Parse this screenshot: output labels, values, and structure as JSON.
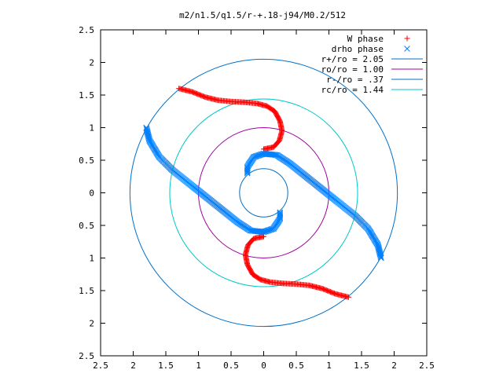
{
  "chart_data": {
    "type": "scatter",
    "title": "m2/n1.5/q1.5/r-+.18-j94/M0.2/512",
    "xlabel": "",
    "ylabel": "",
    "xlim": [
      -2.5,
      2.5
    ],
    "ylim": [
      -2.5,
      2.5
    ],
    "x_ticks": [
      {
        "value": -2.5,
        "label": "2.5"
      },
      {
        "value": -2,
        "label": "2"
      },
      {
        "value": -1.5,
        "label": "1.5"
      },
      {
        "value": -1,
        "label": "1"
      },
      {
        "value": -0.5,
        "label": "0.5"
      },
      {
        "value": 0,
        "label": "0"
      },
      {
        "value": 0.5,
        "label": "0.5"
      },
      {
        "value": 1,
        "label": "1"
      },
      {
        "value": 1.5,
        "label": "1.5"
      },
      {
        "value": 2,
        "label": "2"
      },
      {
        "value": 2.5,
        "label": "2.5"
      }
    ],
    "y_ticks": [
      {
        "value": 2.5,
        "label": "2.5"
      },
      {
        "value": 2,
        "label": "2"
      },
      {
        "value": 1.5,
        "label": "1.5"
      },
      {
        "value": 1,
        "label": "1"
      },
      {
        "value": 0.5,
        "label": "0.5"
      },
      {
        "value": 0,
        "label": "0"
      },
      {
        "value": -0.5,
        "label": "0.5"
      },
      {
        "value": -1,
        "label": "1"
      },
      {
        "value": -1.5,
        "label": "1.5"
      },
      {
        "value": -2,
        "label": "2"
      },
      {
        "value": -2.5,
        "label": "2.5"
      }
    ],
    "grid": false,
    "legend_position": "top-right",
    "series": [
      {
        "name": "W phase",
        "kind": "points",
        "marker": "+",
        "color": "#ff0000",
        "points": [
          [
            -1.3,
            1.6
          ],
          [
            -1.1,
            1.55
          ],
          [
            -0.9,
            1.47
          ],
          [
            -0.7,
            1.42
          ],
          [
            -0.5,
            1.4
          ],
          [
            -0.3,
            1.39
          ],
          [
            -0.1,
            1.37
          ],
          [
            0.05,
            1.33
          ],
          [
            0.17,
            1.25
          ],
          [
            0.25,
            1.1
          ],
          [
            0.28,
            0.95
          ],
          [
            0.24,
            0.8
          ],
          [
            0.15,
            0.7
          ],
          [
            0.0,
            0.67
          ],
          [
            1.3,
            -1.6
          ],
          [
            1.1,
            -1.55
          ],
          [
            0.9,
            -1.47
          ],
          [
            0.7,
            -1.42
          ],
          [
            0.5,
            -1.4
          ],
          [
            0.3,
            -1.39
          ],
          [
            0.1,
            -1.37
          ],
          [
            -0.05,
            -1.33
          ],
          [
            -0.17,
            -1.25
          ],
          [
            -0.25,
            -1.1
          ],
          [
            -0.28,
            -0.95
          ],
          [
            -0.24,
            -0.8
          ],
          [
            -0.15,
            -0.7
          ],
          [
            0.0,
            -0.67
          ]
        ]
      },
      {
        "name": "drho phase",
        "kind": "points",
        "marker": "x",
        "color": "#0080ff",
        "points": [
          [
            -1.8,
            1.0
          ],
          [
            -1.75,
            0.8
          ],
          [
            -1.6,
            0.55
          ],
          [
            -1.4,
            0.35
          ],
          [
            -1.15,
            0.15
          ],
          [
            -0.9,
            -0.05
          ],
          [
            -0.65,
            -0.25
          ],
          [
            -0.4,
            -0.45
          ],
          [
            -0.2,
            -0.58
          ],
          [
            0.0,
            -0.6
          ],
          [
            0.15,
            -0.55
          ],
          [
            0.25,
            -0.4
          ],
          [
            0.25,
            -0.3
          ],
          [
            1.8,
            -1.0
          ],
          [
            1.75,
            -0.8
          ],
          [
            1.6,
            -0.55
          ],
          [
            1.4,
            -0.35
          ],
          [
            1.15,
            -0.15
          ],
          [
            0.9,
            0.05
          ],
          [
            0.65,
            0.25
          ],
          [
            0.4,
            0.45
          ],
          [
            0.2,
            0.58
          ],
          [
            0.0,
            0.6
          ],
          [
            -0.15,
            0.55
          ],
          [
            -0.25,
            0.4
          ],
          [
            -0.25,
            0.3
          ]
        ]
      },
      {
        "name": "r+/ro = 2.05",
        "kind": "circle",
        "radius": 2.05,
        "color": "#0070c8"
      },
      {
        "name": "ro/ro = 1.00",
        "kind": "circle",
        "radius": 1.0,
        "color": "#a000a0"
      },
      {
        "name": "r-/ro = .37",
        "kind": "circle",
        "radius": 0.37,
        "color": "#0070c8"
      },
      {
        "name": "rc/ro = 1.44",
        "kind": "circle",
        "radius": 1.44,
        "color": "#00c8c8"
      }
    ]
  }
}
